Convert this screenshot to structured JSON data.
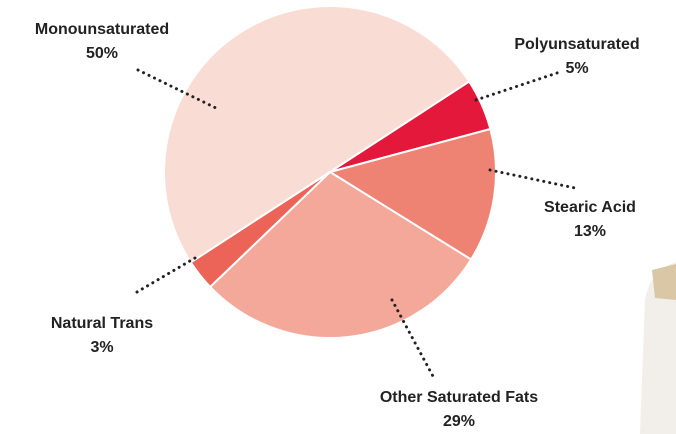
{
  "chart_data": {
    "type": "pie",
    "categories": [
      "Monounsaturated",
      "Polyunsaturated",
      "Stearic Acid",
      "Other Saturated Fats",
      "Natural Trans"
    ],
    "values": [
      50,
      5,
      13,
      29,
      3
    ],
    "value_labels": [
      "50%",
      "5%",
      "13%",
      "29%",
      "3%"
    ],
    "colors": [
      "#f9dcd3",
      "#e4183a",
      "#ee8374",
      "#f3a89a",
      "#ec6358"
    ]
  }
}
